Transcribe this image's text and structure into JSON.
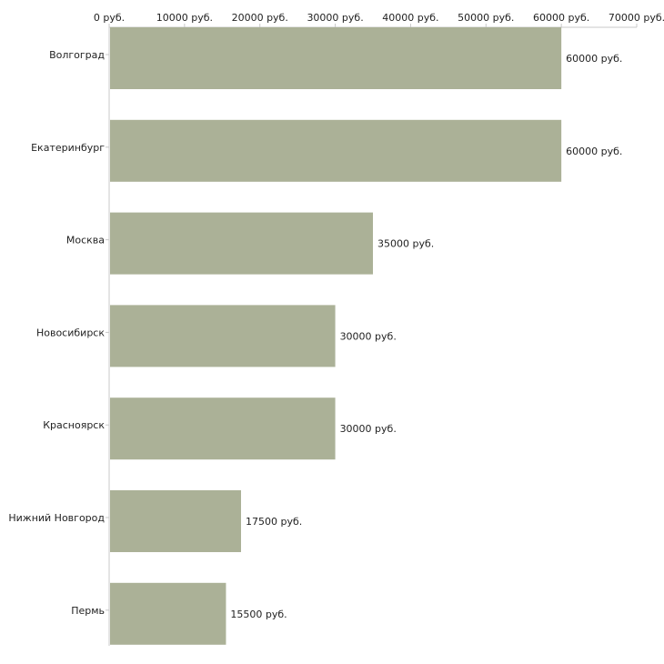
{
  "chart_data": {
    "type": "bar",
    "orientation": "horizontal",
    "title": "",
    "xlabel": "",
    "ylabel": "",
    "unit": "руб.",
    "xlim": [
      0,
      70000
    ],
    "ticks": [
      0,
      10000,
      20000,
      30000,
      40000,
      50000,
      60000,
      70000
    ],
    "tick_labels": [
      "0 руб.",
      "10000 руб.",
      "20000 руб.",
      "30000 руб.",
      "40000 руб.",
      "50000 руб.",
      "60000 руб.",
      "70000 руб."
    ],
    "categories": [
      "Волгоград",
      "Екатеринбург",
      "Москва",
      "Новосибирск",
      "Красноярск",
      "Нижний Новгород",
      "Пермь"
    ],
    "values": [
      60000,
      60000,
      35000,
      30000,
      30000,
      17500,
      15500
    ],
    "value_labels": [
      "60000 руб.",
      "60000 руб.",
      "35000 руб.",
      "30000 руб.",
      "30000 руб.",
      "17500 руб.",
      "15500 руб."
    ],
    "bar_color": "#abb197",
    "axis_color": "#c8c8c8",
    "grid": false,
    "legend": "none"
  }
}
